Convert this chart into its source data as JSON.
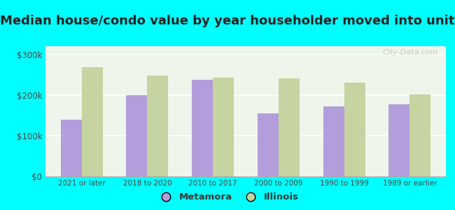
{
  "title": "Median house/condo value by year householder moved into unit",
  "categories": [
    "2021 or later",
    "2018 to 2020",
    "2010 to 2017",
    "2000 to 2009",
    "1990 to 1999",
    "1989 or earlier"
  ],
  "metamora_values": [
    140000,
    200000,
    238000,
    155000,
    172000,
    178000
  ],
  "illinois_values": [
    268000,
    248000,
    243000,
    241000,
    230000,
    202000
  ],
  "metamora_color": "#b39ddb",
  "illinois_color": "#c5d4a0",
  "outer_bg_color": "#00ffff",
  "plot_bg_top": "#f5faf0",
  "plot_bg_bottom": "#e8f5e8",
  "ylim": [
    0,
    320000
  ],
  "yticks": [
    0,
    100000,
    200000,
    300000
  ],
  "ytick_labels": [
    "$0",
    "$100k",
    "$200k",
    "$300k"
  ],
  "legend_labels": [
    "Metamora",
    "Illinois"
  ],
  "watermark": "City-Data.com",
  "title_fontsize": 13,
  "bar_width": 0.32
}
